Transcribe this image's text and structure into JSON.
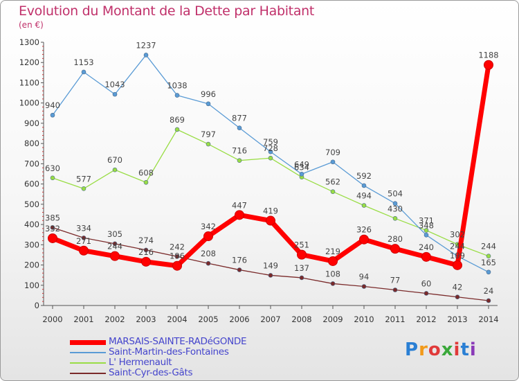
{
  "title": "Evolution du Montant de la Dette par Habitant",
  "unit": "(en €)",
  "logo": "Proxiti",
  "colors": {
    "title": "#c0306a",
    "legend_text": "#4444cc",
    "axis": "#444444"
  },
  "chart_data": {
    "type": "line",
    "title": "Evolution du Montant de la Dette par Habitant",
    "subtitle": "(en €)",
    "xlabel": "",
    "ylabel": "",
    "ylim": [
      0,
      1300
    ],
    "yticks": [
      0,
      100,
      200,
      300,
      400,
      500,
      600,
      700,
      800,
      900,
      1000,
      1100,
      1200,
      1300
    ],
    "categories": [
      "2000",
      "2001",
      "2002",
      "2003",
      "2004",
      "2005",
      "2006",
      "2007",
      "2008",
      "2009",
      "2010",
      "2011",
      "2012",
      "2013",
      "2014"
    ],
    "grid": false,
    "legend_position": "bottom-left",
    "series": [
      {
        "name": "MARSAIS-SAINTE-RADéGONDE",
        "color": "#ff0000",
        "values": [
          332,
          271,
          244,
          216,
          196,
          342,
          447,
          419,
          251,
          219,
          326,
          280,
          240,
          199,
          1188
        ],
        "labels": [
          "332",
          "271",
          "244",
          "216",
          "196",
          "342",
          "447",
          "419",
          "251",
          "219",
          "326",
          "280",
          "240",
          "199",
          "1188"
        ]
      },
      {
        "name": "Saint-Martin-des-Fontaines",
        "color": "#5a9bd5",
        "values": [
          940,
          1153,
          1043,
          1237,
          1038,
          996,
          877,
          759,
          649,
          709,
          592,
          504,
          348,
          244,
          165
        ],
        "labels": [
          "940",
          "1153",
          "1043",
          "1237",
          "1038",
          "996",
          "877",
          "759",
          "649",
          "709",
          "592",
          "504",
          "348",
          "244",
          "165"
        ]
      },
      {
        "name": "L' Hermenault",
        "color": "#99dd44",
        "values": [
          630,
          577,
          670,
          608,
          869,
          797,
          716,
          728,
          634,
          562,
          494,
          430,
          371,
          302,
          244
        ],
        "labels": [
          "630",
          "577",
          "670",
          "608",
          "869",
          "797",
          "716",
          "728",
          "634",
          "562",
          "494",
          "430",
          "371",
          "302",
          "244"
        ]
      },
      {
        "name": "Saint-Cyr-des-Gâts",
        "color": "#7a2a2a",
        "values": [
          385,
          334,
          305,
          274,
          242,
          208,
          176,
          149,
          137,
          108,
          94,
          77,
          60,
          42,
          24
        ],
        "labels": [
          "385",
          "334",
          "305",
          "274",
          "242",
          "208",
          "176",
          "149",
          "137",
          "108",
          "94",
          "77",
          "60",
          "42",
          "24"
        ]
      }
    ]
  }
}
